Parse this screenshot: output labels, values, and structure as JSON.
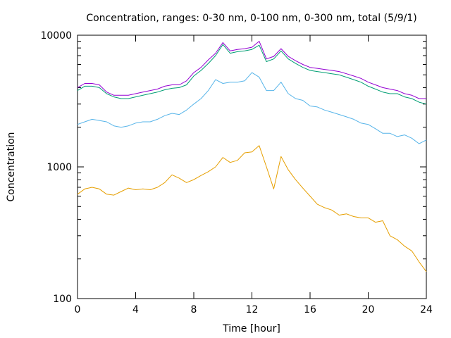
{
  "chart_data": {
    "type": "line",
    "title": "Concentration, ranges: 0-30 nm, 0-100 nm, 0-300 nm, total (5/9/1)",
    "xlabel": "Time [hour]",
    "ylabel": "Concentration",
    "xlim": [
      0,
      24
    ],
    "ylim": [
      100,
      10000
    ],
    "yscale": "log",
    "grid": false,
    "legend": "none",
    "x_ticks": [
      "0",
      "4",
      "8",
      "12",
      "16",
      "20",
      "24"
    ],
    "y_ticks": [
      "100",
      "1000",
      "10000"
    ],
    "x": [
      0,
      0.5,
      1,
      1.5,
      2,
      2.5,
      3,
      3.5,
      4,
      4.5,
      5,
      5.5,
      6,
      6.5,
      7,
      7.5,
      8,
      8.5,
      9,
      9.5,
      10,
      10.5,
      11,
      11.5,
      12,
      12.5,
      13,
      13.5,
      14,
      14.5,
      15,
      15.5,
      16,
      16.5,
      17,
      17.5,
      18,
      18.5,
      19,
      19.5,
      20,
      20.5,
      21,
      21.5,
      22,
      22.5,
      23,
      23.5,
      24
    ],
    "series": [
      {
        "color": "#e69f00",
        "values": [
          620,
          680,
          700,
          680,
          620,
          610,
          650,
          690,
          670,
          680,
          670,
          700,
          760,
          870,
          820,
          760,
          800,
          860,
          920,
          1000,
          1180,
          1080,
          1120,
          1280,
          1300,
          1450,
          1000,
          680,
          1200,
          950,
          800,
          690,
          600,
          520,
          490,
          470,
          430,
          440,
          420,
          410,
          410,
          380,
          390,
          300,
          280,
          250,
          230,
          190,
          160
        ]
      },
      {
        "color": "#56b4e9",
        "values": [
          2100,
          2200,
          2300,
          2250,
          2200,
          2050,
          2000,
          2050,
          2150,
          2200,
          2200,
          2300,
          2450,
          2550,
          2500,
          2700,
          3000,
          3300,
          3800,
          4600,
          4300,
          4400,
          4400,
          4500,
          5200,
          4800,
          3800,
          3800,
          4400,
          3600,
          3300,
          3200,
          2900,
          2850,
          2700,
          2600,
          2500,
          2400,
          2300,
          2150,
          2100,
          1950,
          1800,
          1800,
          1700,
          1750,
          1650,
          1500,
          1600
        ]
      },
      {
        "color": "#009e73",
        "values": [
          3800,
          4100,
          4100,
          4000,
          3600,
          3400,
          3300,
          3300,
          3400,
          3500,
          3600,
          3700,
          3850,
          3950,
          4000,
          4200,
          4900,
          5400,
          6100,
          7000,
          8500,
          7300,
          7500,
          7600,
          7800,
          8400,
          6300,
          6600,
          7600,
          6600,
          6100,
          5700,
          5400,
          5300,
          5200,
          5100,
          5000,
          4800,
          4600,
          4400,
          4100,
          3900,
          3700,
          3600,
          3600,
          3400,
          3300,
          3100,
          3000
        ]
      },
      {
        "color": "#9400d3",
        "values": [
          4000,
          4300,
          4300,
          4200,
          3700,
          3500,
          3500,
          3500,
          3600,
          3700,
          3800,
          3900,
          4100,
          4200,
          4200,
          4500,
          5200,
          5700,
          6500,
          7300,
          8800,
          7600,
          7800,
          7900,
          8100,
          9000,
          6600,
          6900,
          7900,
          6900,
          6400,
          6000,
          5700,
          5600,
          5500,
          5400,
          5300,
          5100,
          4900,
          4700,
          4400,
          4200,
          4000,
          3900,
          3800,
          3600,
          3500,
          3300,
          3300
        ]
      }
    ]
  }
}
